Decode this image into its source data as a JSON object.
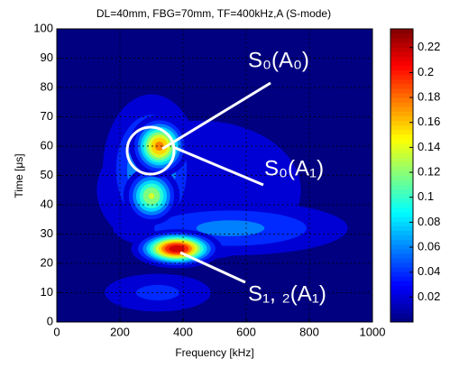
{
  "chart_data": {
    "type": "contour",
    "title": "DL=40mm, FBG=70mm, TF=400kHz,A (S-mode)",
    "xlabel": "Frequency [kHz]",
    "ylabel": "Time [μs]",
    "xlim": [
      0,
      1000
    ],
    "xticks": [
      0,
      200,
      400,
      600,
      800,
      1000
    ],
    "ylim": [
      0,
      100
    ],
    "yticks": [
      0,
      10,
      20,
      30,
      40,
      50,
      60,
      70,
      80,
      90,
      100
    ],
    "grid": true,
    "colormap": "jet",
    "clim": [
      0,
      0.235
    ],
    "cticks": [
      0.02,
      0.04,
      0.06,
      0.08,
      0.1,
      0.12,
      0.14,
      0.16,
      0.18,
      0.2,
      0.22
    ],
    "peaks": [
      {
        "x": 450,
        "y": 45,
        "amplitude": 0.035,
        "sx": 300,
        "sy": 22
      },
      {
        "x": 300,
        "y": 52,
        "amplitude": 0.085,
        "sx": 90,
        "sy": 15
      },
      {
        "x": 550,
        "y": 32,
        "amplitude": 0.065,
        "sx": 240,
        "sy": 6
      },
      {
        "x": 320,
        "y": 10,
        "amplitude": 0.045,
        "sx": 130,
        "sy": 5
      },
      {
        "x": 300,
        "y": 43,
        "amplitude": 0.14,
        "sx": 45,
        "sy": 5
      },
      {
        "x": 325,
        "y": 60,
        "amplitude": 0.185,
        "sx": 45,
        "sy": 5
      },
      {
        "x": 380,
        "y": 25,
        "amplitude": 0.232,
        "sx": 65,
        "sy": 3
      }
    ],
    "annotations": [
      "S₀(A₀)",
      "S₀(A₁)",
      "S₁, ₂(A₁)"
    ]
  }
}
